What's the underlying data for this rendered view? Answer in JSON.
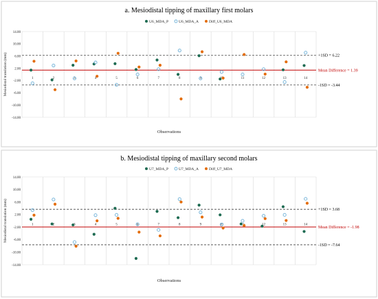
{
  "colors": {
    "frame": "#cfcfcf",
    "grid": "#d9d9d9",
    "p": "#1e6b52",
    "a": "#6aaed6",
    "diff": "#e36c09",
    "mean_line": "#c00000",
    "sd_line": "#404040",
    "mean_text": "#c00000",
    "sd_text": "#000000"
  },
  "chart_data": [
    {
      "type": "scatter",
      "title": "a. Mesiodistal tipping of maxillary  first molars",
      "ylabel": "Mesiodistal translation (mm)",
      "xlabel": "Observations",
      "ylim": [
        -14,
        14
      ],
      "yticks": [
        "-14.00",
        "-10.00",
        "-6.00",
        "-2.00",
        "2.00",
        "6.00",
        "10.00",
        "14.00"
      ],
      "ytick_values": [
        -14,
        -10,
        -6,
        -2,
        2,
        6,
        10,
        14
      ],
      "x": [
        "1",
        "2",
        "3",
        "4",
        "5",
        "6",
        "7",
        "8",
        "9",
        "10",
        "11",
        "12",
        "13",
        "14"
      ],
      "series": [
        {
          "name": "U6_MDA_P",
          "marker": "filled",
          "values": [
            1.4,
            -1.8,
            3.0,
            3.4,
            3.5,
            1.6,
            4.7,
            0.0,
            6.1,
            -1.5,
            null,
            null,
            1.5,
            2.9
          ]
        },
        {
          "name": "U6_MDA_A",
          "marker": "open",
          "values": [
            -2.9,
            2.9,
            -1.3,
            3.9,
            -3.4,
            0.0,
            1.7,
            7.8,
            -1.3,
            0.8,
            0.0,
            1.7,
            -2.5,
            7.1
          ]
        },
        {
          "name": "Diff_U6_MDA",
          "marker": "filled",
          "values": [
            4.3,
            -5.0,
            4.4,
            -0.6,
            6.9,
            2.4,
            3.0,
            -8.0,
            7.4,
            -1.2,
            6.5,
            0.1,
            4.1,
            -4.2
          ]
        }
      ],
      "reference_lines": [
        {
          "label": "+1SD = 6.22",
          "value": 6.22,
          "style": "dashed"
        },
        {
          "label": "Mean Difference = 1.39",
          "value": 1.39,
          "style": "solid"
        },
        {
          "label": "-1SD = -3.44",
          "value": -3.44,
          "style": "dashed"
        }
      ],
      "legend_position": "top-center",
      "grid": false
    },
    {
      "type": "scatter",
      "title": "b. Mesiodistal tipping of maxillary  second molars",
      "ylabel": "Mesiodistal translation (mm)",
      "xlabel": "Observations",
      "ylim": [
        -14,
        14
      ],
      "yticks": [
        "-14.00",
        "-10.00",
        "-6.00",
        "-2.00",
        "2.00",
        "6.00",
        "10.00",
        "14.00"
      ],
      "ytick_values": [
        -14,
        -10,
        -6,
        -2,
        2,
        6,
        10,
        14
      ],
      "x": [
        "1",
        "2",
        "3",
        "4",
        "5",
        "6",
        "7",
        "8",
        "9",
        "10",
        "11",
        "12",
        "13",
        "14"
      ],
      "series": [
        {
          "name": "U7_MDA_P",
          "marker": "filled",
          "values": [
            0.5,
            -1.0,
            -1.3,
            -4.3,
            4.0,
            -12.0,
            3.0,
            1.0,
            5.0,
            1.9,
            -1.0,
            -1.7,
            4.5,
            -3.4
          ]
        },
        {
          "name": "U7_MDA_A",
          "marker": "open",
          "values": [
            3.4,
            6.8,
            -6.8,
            1.8,
            1.9,
            -1.1,
            -2.9,
            6.9,
            2.7,
            -1.2,
            0.0,
            1.6,
            1.9,
            7.0
          ]
        },
        {
          "name": "Diff_U7_MDA",
          "marker": "filled",
          "values": [
            1.8,
            5.3,
            -8.1,
            0.0,
            0.8,
            -3.6,
            -4.8,
            6.0,
            1.2,
            -2.3,
            -1.5,
            0.7,
            0.1,
            5.6
          ]
        }
      ],
      "reference_lines": [
        {
          "label": "+1SD = 3.68",
          "value": 3.68,
          "style": "dashed"
        },
        {
          "label": "Mean Difference = -1.98",
          "value": -1.98,
          "style": "solid"
        },
        {
          "label": "-1SD = -7.64",
          "value": -7.64,
          "style": "dashed"
        }
      ],
      "legend_position": "top-center",
      "grid": false
    }
  ]
}
